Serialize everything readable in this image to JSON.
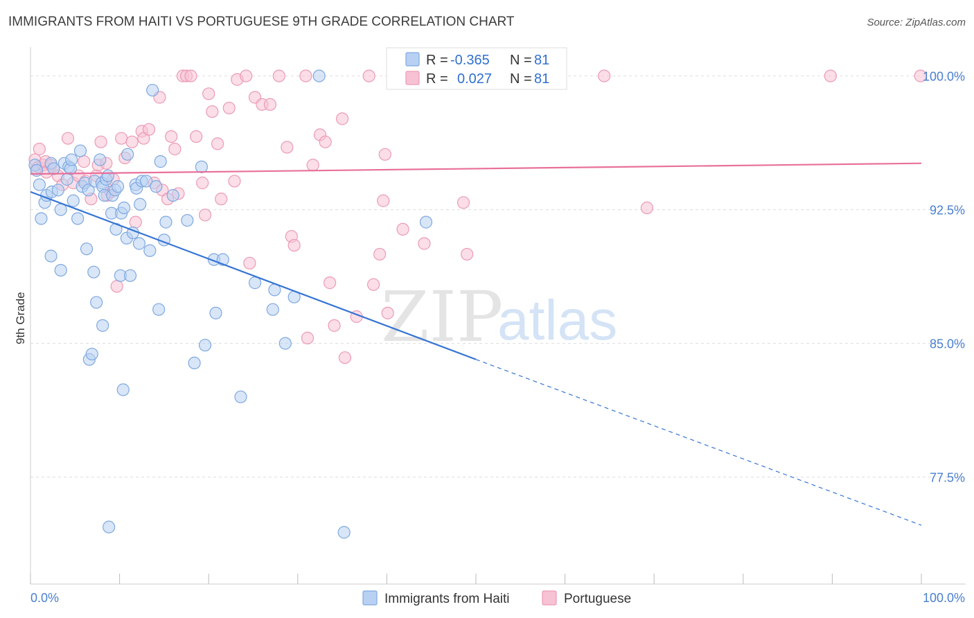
{
  "title": "IMMIGRANTS FROM HAITI VS PORTUGUESE 9TH GRADE CORRELATION CHART",
  "source": "Source: ZipAtlas.com",
  "watermark": {
    "zip": "ZIP",
    "atlas": "atlas"
  },
  "colors": {
    "haiti_fill": "#b8d1f3",
    "haiti_stroke": "#7fa8e0",
    "haiti_line": "#3574d4",
    "portuguese_fill": "#f7c2d3",
    "portuguese_stroke": "#ec9ab5",
    "portuguese_line": "#e8709a",
    "grid": "#dddddd",
    "tick_label": "#4a7fd0"
  },
  "legend": {
    "rows": [
      {
        "r_label": "R =",
        "r_value": "-0.365",
        "n_label": "N =",
        "n_value": "81"
      },
      {
        "r_label": "R =",
        "r_value": "0.027",
        "n_label": "N =",
        "n_value": "81"
      }
    ]
  },
  "chart_data": {
    "type": "scatter",
    "title": "IMMIGRANTS FROM HAITI VS PORTUGUESE 9TH GRADE CORRELATION CHART",
    "xlabel": "",
    "ylabel": "9th Grade",
    "xlim": [
      0,
      100
    ],
    "ylim": [
      71.5,
      101.5
    ],
    "x_tick_labels": [
      "0.0%",
      "100.0%"
    ],
    "y_ticks": [
      77.5,
      85.0,
      92.5,
      100.0
    ],
    "y_tick_labels": [
      "77.5%",
      "85.0%",
      "92.5%",
      "100.0%"
    ],
    "grid": true,
    "legend_position": "bottom",
    "series": [
      {
        "name": "Immigrants from Haiti",
        "r": -0.365,
        "n": 81,
        "trend": {
          "x0": 0,
          "y0": 93.5,
          "x1": 50,
          "y1": 84.1,
          "dashed_to_x": 100,
          "dashed_to_y": 74.8
        },
        "points": [
          [
            0.5,
            95.0
          ],
          [
            0.7,
            94.7
          ],
          [
            1.0,
            93.9
          ],
          [
            1.2,
            92.0
          ],
          [
            1.6,
            92.9
          ],
          [
            1.8,
            93.3
          ],
          [
            2.3,
            95.1
          ],
          [
            2.4,
            93.5
          ],
          [
            2.3,
            89.9
          ],
          [
            2.6,
            94.8
          ],
          [
            3.1,
            93.6
          ],
          [
            3.4,
            92.5
          ],
          [
            3.4,
            89.1
          ],
          [
            3.8,
            95.1
          ],
          [
            4.1,
            94.2
          ],
          [
            4.3,
            94.9
          ],
          [
            4.5,
            94.8
          ],
          [
            4.6,
            95.3
          ],
          [
            4.8,
            93.0
          ],
          [
            5.3,
            92.0
          ],
          [
            5.6,
            95.8
          ],
          [
            5.8,
            93.8
          ],
          [
            6.1,
            94.0
          ],
          [
            6.3,
            90.3
          ],
          [
            6.5,
            93.6
          ],
          [
            6.6,
            84.1
          ],
          [
            6.9,
            84.4
          ],
          [
            7.2,
            94.1
          ],
          [
            7.1,
            89.0
          ],
          [
            7.4,
            87.3
          ],
          [
            7.8,
            95.3
          ],
          [
            8.0,
            94.0
          ],
          [
            8.1,
            93.8
          ],
          [
            8.1,
            86.0
          ],
          [
            8.3,
            93.3
          ],
          [
            8.5,
            94.2
          ],
          [
            8.7,
            94.4
          ],
          [
            8.8,
            74.7
          ],
          [
            9.1,
            92.3
          ],
          [
            9.2,
            93.3
          ],
          [
            9.5,
            93.6
          ],
          [
            9.6,
            91.4
          ],
          [
            9.8,
            93.8
          ],
          [
            10.2,
            92.3
          ],
          [
            10.1,
            88.8
          ],
          [
            10.4,
            82.4
          ],
          [
            10.5,
            92.6
          ],
          [
            10.8,
            90.9
          ],
          [
            10.9,
            95.6
          ],
          [
            11.2,
            88.8
          ],
          [
            11.5,
            91.2
          ],
          [
            11.8,
            93.9
          ],
          [
            11.9,
            93.7
          ],
          [
            12.2,
            90.6
          ],
          [
            12.3,
            92.8
          ],
          [
            12.5,
            94.1
          ],
          [
            13.0,
            94.1
          ],
          [
            13.4,
            90.2
          ],
          [
            13.7,
            99.2
          ],
          [
            14.1,
            93.8
          ],
          [
            14.4,
            86.9
          ],
          [
            14.6,
            95.2
          ],
          [
            15.0,
            90.8
          ],
          [
            15.2,
            91.8
          ],
          [
            16.0,
            93.3
          ],
          [
            17.6,
            91.9
          ],
          [
            18.4,
            83.9
          ],
          [
            19.2,
            94.9
          ],
          [
            19.6,
            84.9
          ],
          [
            20.6,
            89.7
          ],
          [
            20.8,
            86.7
          ],
          [
            21.6,
            89.7
          ],
          [
            23.6,
            82.0
          ],
          [
            25.2,
            88.4
          ],
          [
            27.2,
            86.9
          ],
          [
            27.4,
            88.0
          ],
          [
            28.6,
            85.0
          ],
          [
            29.6,
            87.6
          ],
          [
            32.4,
            100.0
          ],
          [
            35.2,
            74.4
          ],
          [
            44.4,
            91.8
          ]
        ]
      },
      {
        "name": "Portuguese",
        "r": 0.027,
        "n": 81,
        "trend": {
          "x0": 0,
          "y0": 94.5,
          "x1": 100,
          "y1": 95.1
        },
        "points": [
          [
            0.5,
            95.3
          ],
          [
            0.7,
            94.8
          ],
          [
            0.9,
            94.9
          ],
          [
            1.0,
            95.9
          ],
          [
            1.4,
            95.0
          ],
          [
            1.7,
            95.2
          ],
          [
            1.8,
            94.6
          ],
          [
            2.3,
            95.0
          ],
          [
            2.6,
            94.8
          ],
          [
            3.1,
            94.4
          ],
          [
            3.6,
            93.9
          ],
          [
            4.2,
            96.5
          ],
          [
            4.8,
            94.0
          ],
          [
            5.4,
            94.4
          ],
          [
            6.0,
            95.2
          ],
          [
            6.2,
            94.1
          ],
          [
            6.8,
            93.1
          ],
          [
            7.4,
            94.4
          ],
          [
            7.6,
            95.0
          ],
          [
            7.9,
            96.3
          ],
          [
            8.5,
            95.1
          ],
          [
            8.6,
            93.3
          ],
          [
            9.0,
            93.5
          ],
          [
            9.3,
            94.2
          ],
          [
            9.7,
            88.2
          ],
          [
            10.2,
            96.5
          ],
          [
            10.6,
            95.4
          ],
          [
            11.4,
            96.3
          ],
          [
            11.8,
            91.8
          ],
          [
            12.5,
            96.9
          ],
          [
            12.7,
            96.5
          ],
          [
            13.3,
            97.0
          ],
          [
            13.9,
            94.0
          ],
          [
            14.5,
            98.8
          ],
          [
            14.8,
            93.6
          ],
          [
            15.4,
            93.1
          ],
          [
            15.8,
            96.6
          ],
          [
            16.2,
            95.9
          ],
          [
            16.6,
            93.4
          ],
          [
            17.1,
            100.0
          ],
          [
            17.5,
            100.0
          ],
          [
            18.0,
            100.0
          ],
          [
            18.6,
            96.6
          ],
          [
            19.3,
            94.0
          ],
          [
            19.6,
            92.2
          ],
          [
            20.0,
            99.0
          ],
          [
            20.4,
            98.0
          ],
          [
            21.0,
            96.2
          ],
          [
            21.4,
            93.1
          ],
          [
            22.3,
            98.2
          ],
          [
            22.9,
            94.1
          ],
          [
            23.2,
            99.8
          ],
          [
            24.2,
            100.0
          ],
          [
            24.6,
            89.5
          ],
          [
            25.2,
            98.8
          ],
          [
            26.0,
            98.4
          ],
          [
            26.9,
            98.4
          ],
          [
            27.9,
            100.0
          ],
          [
            28.8,
            96.0
          ],
          [
            29.3,
            91.0
          ],
          [
            29.6,
            90.5
          ],
          [
            30.9,
            100.0
          ],
          [
            31.1,
            85.3
          ],
          [
            31.7,
            95.0
          ],
          [
            32.5,
            96.7
          ],
          [
            33.1,
            96.3
          ],
          [
            33.6,
            88.4
          ],
          [
            34.1,
            86.0
          ],
          [
            35.0,
            97.6
          ],
          [
            35.3,
            84.2
          ],
          [
            36.6,
            86.5
          ],
          [
            38.0,
            100.0
          ],
          [
            38.5,
            88.3
          ],
          [
            39.2,
            90.0
          ],
          [
            39.6,
            93.0
          ],
          [
            39.8,
            95.6
          ],
          [
            40.1,
            86.7
          ],
          [
            41.8,
            91.4
          ],
          [
            44.2,
            90.6
          ],
          [
            48.6,
            92.9
          ],
          [
            49.0,
            90.0
          ]
        ]
      }
    ],
    "extra_portuguese_points": [
      [
        64.4,
        100.0
      ],
      [
        69.2,
        92.6
      ],
      [
        89.8,
        100.0
      ],
      [
        99.9,
        100.0
      ]
    ]
  },
  "bottom_legend": {
    "haiti_label": "Immigrants from Haiti",
    "portuguese_label": "Portuguese"
  }
}
